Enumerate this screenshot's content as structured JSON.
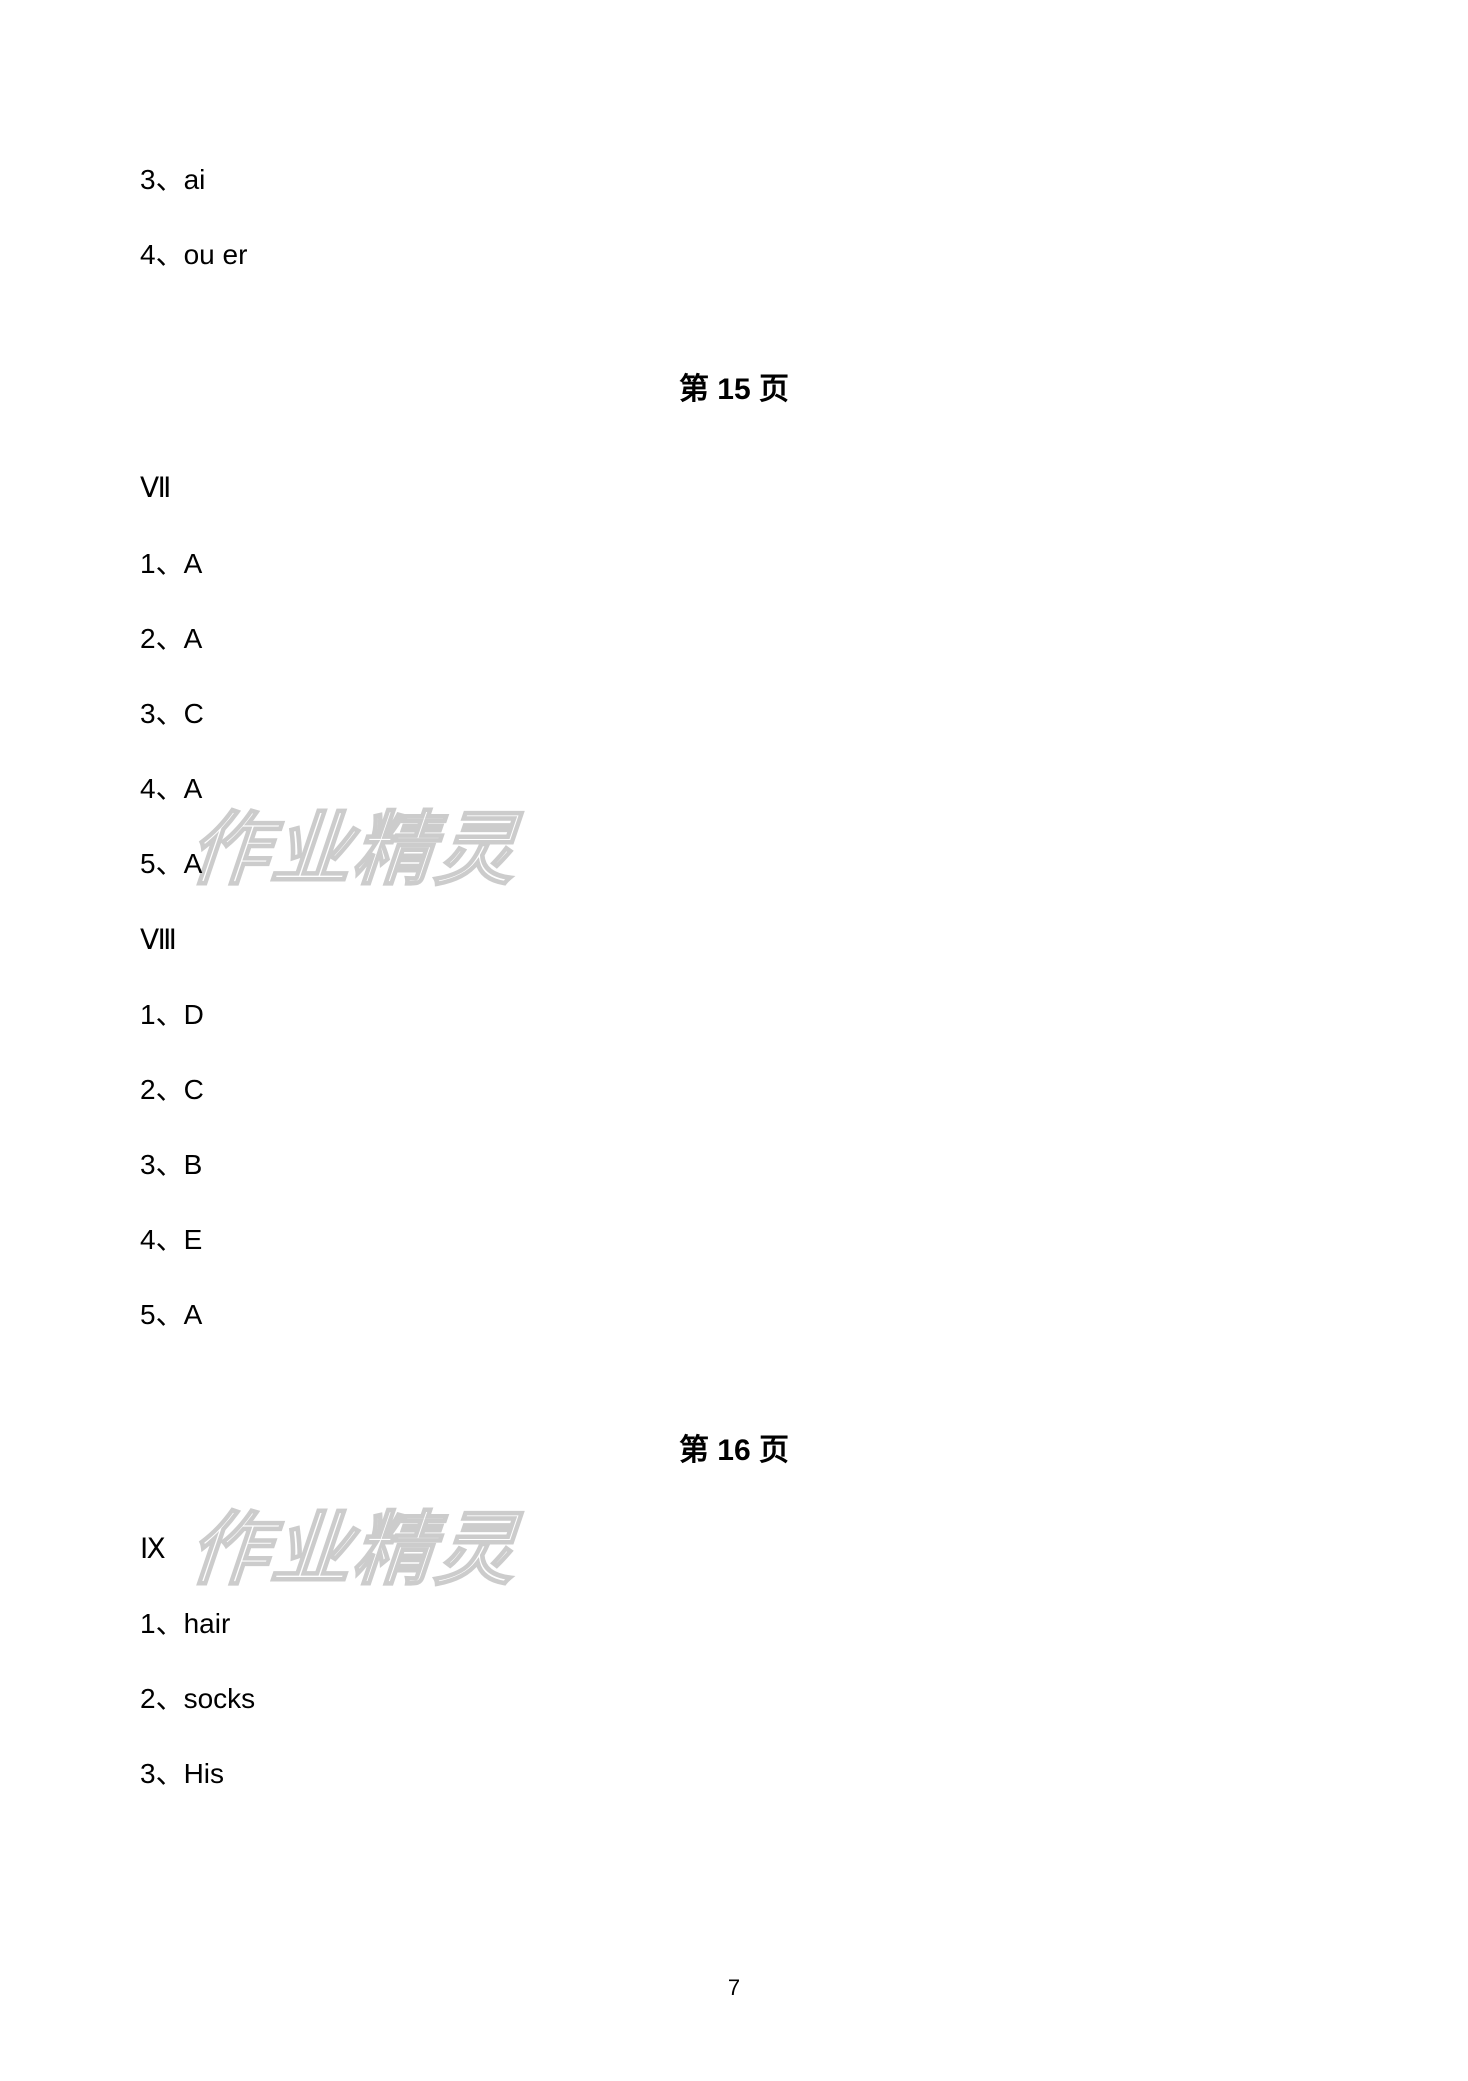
{
  "top_section": {
    "items": [
      "3、ai",
      "4、ou    er"
    ]
  },
  "page15": {
    "heading": "第 15 页",
    "section_vii": {
      "label": "Ⅶ",
      "items": [
        "1、A",
        "2、A",
        "3、C",
        "4、A",
        "5、A"
      ]
    },
    "section_viii": {
      "label": "Ⅷ",
      "items": [
        "1、D",
        "2、C",
        "3、B",
        "4、E",
        "5、A"
      ]
    }
  },
  "page16": {
    "heading": "第 16 页",
    "section_ix": {
      "label": "Ⅸ",
      "items": [
        "1、hair",
        "2、socks",
        "3、His"
      ]
    }
  },
  "watermark_text": "作业精灵",
  "page_number": "7",
  "colors": {
    "background": "#ffffff",
    "text": "#000000",
    "watermark_stroke": "#cccccc"
  },
  "fonts": {
    "body_size": 28,
    "heading_size": 30,
    "page_num_size": 22
  }
}
